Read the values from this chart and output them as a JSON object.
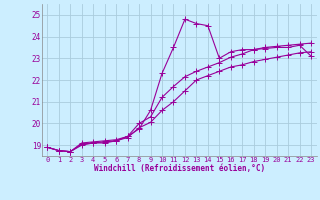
{
  "background_color": "#cceeff",
  "grid_color": "#aaccdd",
  "line_color": "#990099",
  "x_label": "Windchill (Refroidissement éolien,°C)",
  "xlim": [
    -0.5,
    23.5
  ],
  "ylim": [
    18.5,
    25.5
  ],
  "yticks": [
    19,
    20,
    21,
    22,
    23,
    24,
    25
  ],
  "xticks": [
    0,
    1,
    2,
    3,
    4,
    5,
    6,
    7,
    8,
    9,
    10,
    11,
    12,
    13,
    14,
    15,
    16,
    17,
    18,
    19,
    20,
    21,
    22,
    23
  ],
  "series1_x": [
    0,
    1,
    2,
    3,
    4,
    5,
    6,
    7,
    8,
    9,
    10,
    11,
    12,
    13,
    14,
    15,
    16,
    17,
    18,
    19,
    20,
    21,
    22,
    23
  ],
  "series1_y": [
    18.9,
    18.75,
    18.7,
    19.0,
    19.1,
    19.1,
    19.2,
    19.4,
    19.75,
    20.6,
    22.3,
    23.5,
    24.8,
    24.6,
    24.5,
    23.0,
    23.3,
    23.4,
    23.4,
    23.45,
    23.5,
    23.5,
    23.6,
    23.1
  ],
  "series2_x": [
    0,
    1,
    2,
    3,
    4,
    5,
    6,
    7,
    8,
    9,
    10,
    11,
    12,
    13,
    14,
    15,
    16,
    17,
    18,
    19,
    20,
    21,
    22,
    23
  ],
  "series2_y": [
    18.9,
    18.75,
    18.7,
    19.05,
    19.1,
    19.15,
    19.2,
    19.35,
    19.8,
    20.05,
    20.6,
    21.0,
    21.5,
    22.0,
    22.2,
    22.4,
    22.6,
    22.7,
    22.85,
    22.95,
    23.05,
    23.15,
    23.25,
    23.3
  ],
  "series3_x": [
    0,
    1,
    2,
    3,
    4,
    5,
    6,
    7,
    8,
    9,
    10,
    11,
    12,
    13,
    14,
    15,
    16,
    17,
    18,
    19,
    20,
    21,
    22,
    23
  ],
  "series3_y": [
    18.9,
    18.75,
    18.7,
    19.1,
    19.15,
    19.2,
    19.25,
    19.4,
    20.0,
    20.3,
    21.2,
    21.7,
    22.15,
    22.4,
    22.6,
    22.8,
    23.05,
    23.2,
    23.4,
    23.5,
    23.55,
    23.6,
    23.65,
    23.7
  ],
  "marker_size": 2.0,
  "line_width": 0.8,
  "tick_fontsize": 5.0,
  "xlabel_fontsize": 5.5
}
